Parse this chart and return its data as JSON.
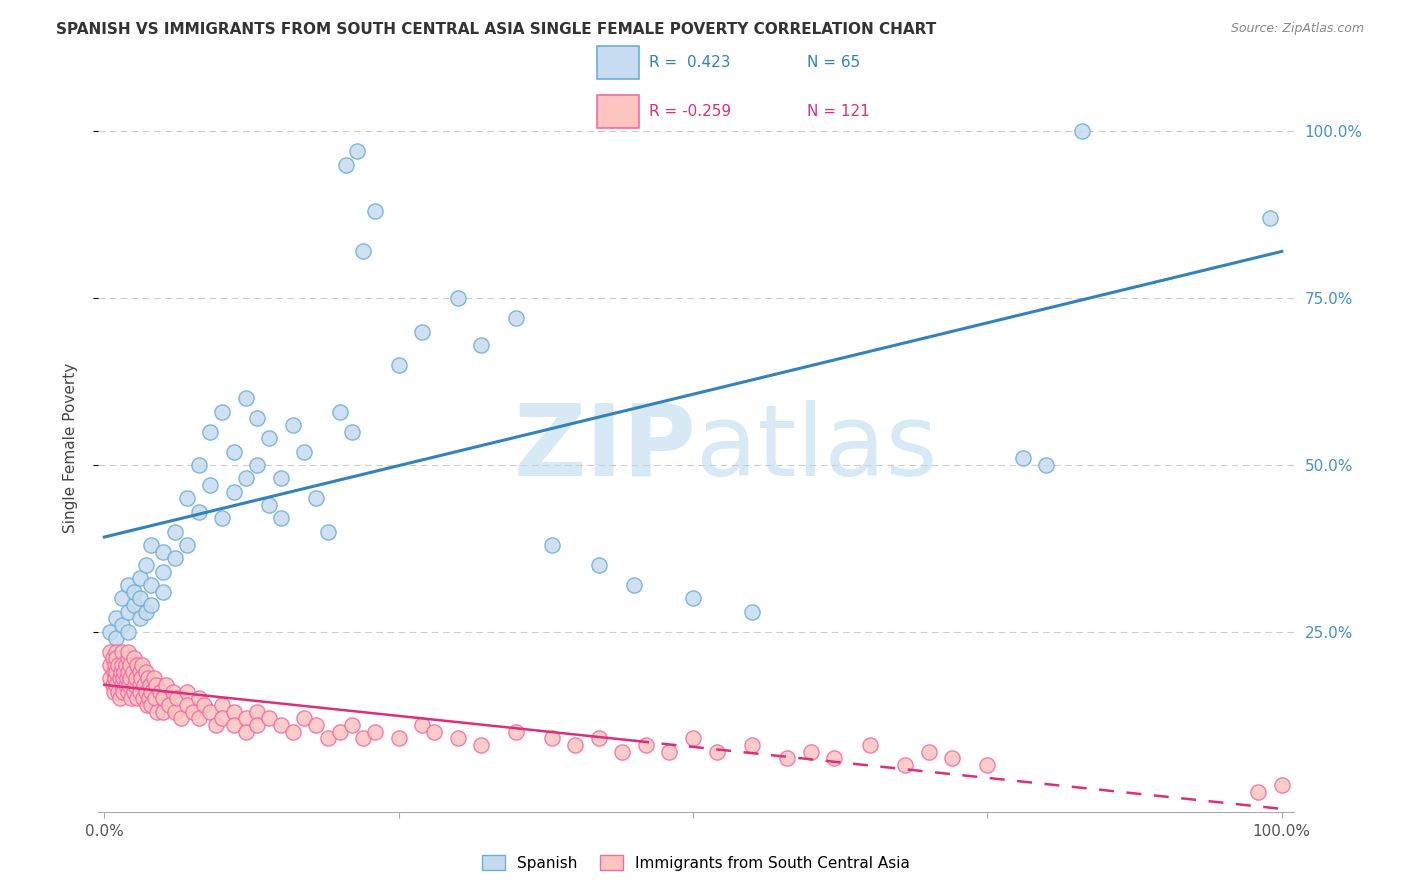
{
  "title": "SPANISH VS IMMIGRANTS FROM SOUTH CENTRAL ASIA SINGLE FEMALE POVERTY CORRELATION CHART",
  "source": "Source: ZipAtlas.com",
  "ylabel": "Single Female Poverty",
  "legend_label1": "Spanish",
  "legend_label2": "Immigrants from South Central Asia",
  "r1": 0.423,
  "n1": 65,
  "r2": -0.259,
  "n2": 121,
  "color_blue_fill": "#c6dbef",
  "color_blue_edge": "#6baed6",
  "color_pink_fill": "#fcc5c0",
  "color_pink_edge": "#f768a1",
  "color_blue_line": "#3182bd",
  "color_pink_line": "#de2d7a",
  "color_right_axis": "#4292c6",
  "watermark_color": "#ddeef8",
  "blue_x": [
    0.005,
    0.01,
    0.01,
    0.015,
    0.015,
    0.02,
    0.02,
    0.02,
    0.025,
    0.025,
    0.03,
    0.03,
    0.03,
    0.035,
    0.035,
    0.04,
    0.04,
    0.04,
    0.05,
    0.05,
    0.05,
    0.06,
    0.06,
    0.07,
    0.07,
    0.08,
    0.08,
    0.09,
    0.09,
    0.1,
    0.1,
    0.11,
    0.11,
    0.12,
    0.12,
    0.13,
    0.13,
    0.14,
    0.14,
    0.15,
    0.15,
    0.16,
    0.17,
    0.18,
    0.19,
    0.2,
    0.21,
    0.22,
    0.23,
    0.25,
    0.27,
    0.3,
    0.32,
    0.35,
    0.38,
    0.42,
    0.45,
    0.5,
    0.55,
    0.78,
    0.8,
    0.83,
    0.99,
    0.205,
    0.215
  ],
  "blue_y": [
    0.25,
    0.27,
    0.24,
    0.3,
    0.26,
    0.28,
    0.32,
    0.25,
    0.29,
    0.31,
    0.3,
    0.27,
    0.33,
    0.35,
    0.28,
    0.38,
    0.32,
    0.29,
    0.34,
    0.37,
    0.31,
    0.4,
    0.36,
    0.45,
    0.38,
    0.5,
    0.43,
    0.55,
    0.47,
    0.58,
    0.42,
    0.52,
    0.46,
    0.6,
    0.48,
    0.57,
    0.5,
    0.54,
    0.44,
    0.48,
    0.42,
    0.56,
    0.52,
    0.45,
    0.4,
    0.58,
    0.55,
    0.82,
    0.88,
    0.65,
    0.7,
    0.75,
    0.68,
    0.72,
    0.38,
    0.35,
    0.32,
    0.3,
    0.28,
    0.51,
    0.5,
    1.0,
    0.87,
    0.95,
    0.97
  ],
  "pink_x": [
    0.005,
    0.005,
    0.005,
    0.007,
    0.007,
    0.008,
    0.008,
    0.009,
    0.009,
    0.01,
    0.01,
    0.01,
    0.01,
    0.012,
    0.012,
    0.013,
    0.013,
    0.014,
    0.015,
    0.015,
    0.015,
    0.016,
    0.016,
    0.017,
    0.018,
    0.018,
    0.019,
    0.02,
    0.02,
    0.02,
    0.02,
    0.021,
    0.022,
    0.022,
    0.023,
    0.024,
    0.025,
    0.025,
    0.026,
    0.027,
    0.028,
    0.028,
    0.03,
    0.03,
    0.03,
    0.031,
    0.032,
    0.033,
    0.034,
    0.035,
    0.035,
    0.036,
    0.037,
    0.038,
    0.039,
    0.04,
    0.04,
    0.042,
    0.043,
    0.044,
    0.045,
    0.047,
    0.05,
    0.05,
    0.052,
    0.055,
    0.058,
    0.06,
    0.062,
    0.065,
    0.07,
    0.07,
    0.075,
    0.08,
    0.08,
    0.085,
    0.09,
    0.095,
    0.1,
    0.1,
    0.11,
    0.11,
    0.12,
    0.12,
    0.13,
    0.13,
    0.14,
    0.15,
    0.16,
    0.17,
    0.18,
    0.19,
    0.2,
    0.21,
    0.22,
    0.23,
    0.25,
    0.27,
    0.28,
    0.3,
    0.32,
    0.35,
    0.38,
    0.4,
    0.42,
    0.44,
    0.46,
    0.48,
    0.5,
    0.52,
    0.55,
    0.58,
    0.6,
    0.62,
    0.65,
    0.68,
    0.7,
    0.72,
    0.75,
    0.98,
    1.0
  ],
  "pink_y": [
    0.2,
    0.18,
    0.22,
    0.17,
    0.21,
    0.19,
    0.16,
    0.2,
    0.18,
    0.22,
    0.19,
    0.17,
    0.21,
    0.16,
    0.2,
    0.18,
    0.15,
    0.19,
    0.22,
    0.2,
    0.17,
    0.18,
    0.16,
    0.19,
    0.2,
    0.17,
    0.18,
    0.21,
    0.19,
    0.16,
    0.22,
    0.17,
    0.2,
    0.18,
    0.15,
    0.19,
    0.16,
    0.21,
    0.17,
    0.18,
    0.2,
    0.15,
    0.19,
    0.17,
    0.16,
    0.18,
    0.2,
    0.15,
    0.17,
    0.16,
    0.19,
    0.14,
    0.18,
    0.15,
    0.17,
    0.16,
    0.14,
    0.18,
    0.15,
    0.17,
    0.13,
    0.16,
    0.15,
    0.13,
    0.17,
    0.14,
    0.16,
    0.13,
    0.15,
    0.12,
    0.16,
    0.14,
    0.13,
    0.15,
    0.12,
    0.14,
    0.13,
    0.11,
    0.14,
    0.12,
    0.13,
    0.11,
    0.12,
    0.1,
    0.13,
    0.11,
    0.12,
    0.11,
    0.1,
    0.12,
    0.11,
    0.09,
    0.1,
    0.11,
    0.09,
    0.1,
    0.09,
    0.11,
    0.1,
    0.09,
    0.08,
    0.1,
    0.09,
    0.08,
    0.09,
    0.07,
    0.08,
    0.07,
    0.09,
    0.07,
    0.08,
    0.06,
    0.07,
    0.06,
    0.08,
    0.05,
    0.07,
    0.06,
    0.05,
    0.01,
    0.02
  ]
}
